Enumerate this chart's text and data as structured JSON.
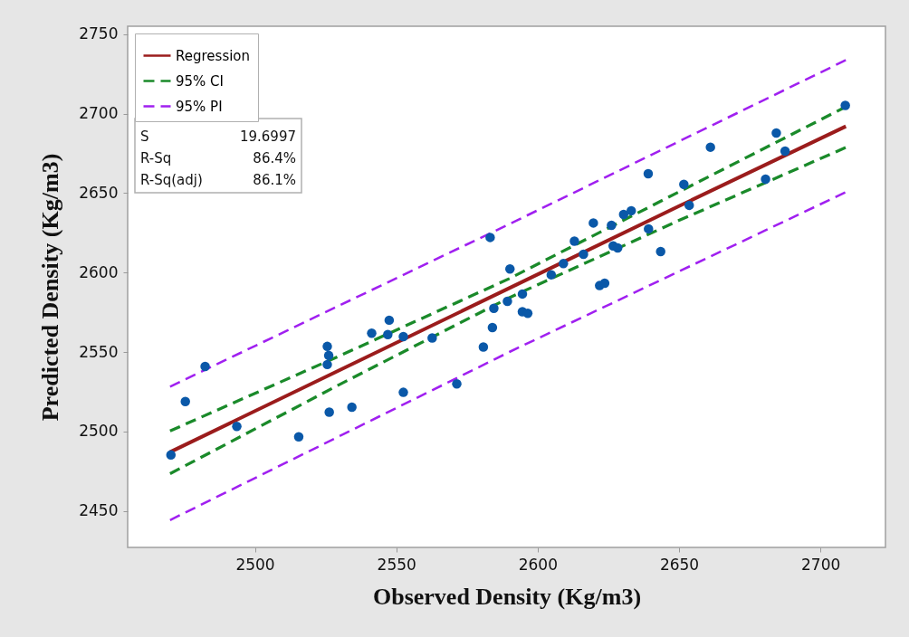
{
  "chart_data": {
    "type": "scatter",
    "xlabel": "Observed Density (Kg/m3)",
    "ylabel": "Predicted Density (Kg/m3)",
    "xlim": [
      2455,
      2723
    ],
    "ylim": [
      2427,
      2755
    ],
    "xticks": [
      2500,
      2550,
      2600,
      2650,
      2700
    ],
    "yticks": [
      2450,
      2500,
      2550,
      2600,
      2650,
      2700,
      2750
    ],
    "grid": false,
    "legend": "top left",
    "annotations": [
      "S",
      "19.6997",
      "R-Sq",
      "86.4%",
      "R-Sq(adj)",
      "86.1%"
    ],
    "series": [
      {
        "type": "line",
        "name": "Regression",
        "color": "#9b1c1c",
        "line_style": "solid",
        "x": [
          2470,
          2530,
          2590,
          2650,
          2709
        ],
        "values": [
          2487,
          2538.6,
          2590.2,
          2641.8,
          2692
        ]
      },
      {
        "type": "line",
        "name": "95% CI",
        "color": "#1a8a2a",
        "line_style": "dashed",
        "x": [
          2470,
          2530,
          2590,
          2650,
          2709
        ],
        "values": [
          2500.3,
          2547.6,
          2596.2,
          2650.8,
          2704.3
        ]
      },
      {
        "type": "line",
        "color": "#1a8a2a",
        "line_style": "dashed",
        "x": [
          2470,
          2530,
          2590,
          2650,
          2709
        ],
        "values": [
          2473.4,
          2529.6,
          2584.2,
          2632.8,
          2678.7
        ]
      },
      {
        "type": "line",
        "name": "95% PI",
        "color": "#a020f0",
        "line_style": "dashed",
        "x": [
          2470,
          2590,
          2709
        ],
        "values": [
          2528.2,
          2630.5,
          2733.7
        ]
      },
      {
        "type": "line",
        "color": "#a020f0",
        "line_style": "dashed",
        "x": [
          2470,
          2590,
          2709
        ],
        "values": [
          2444.2,
          2550,
          2650.6
        ]
      },
      {
        "marker": "circle",
        "color": "#0a58a8",
        "x": [
          2470.3,
          2475.4,
          2482.4,
          2493.6,
          2515.5,
          2525.6,
          2526.1,
          2525.6,
          2526.3,
          2534.3,
          2541.3,
          2547.5,
          2547,
          2552.5,
          2552.5,
          2562.7,
          2571.4,
          2580.8,
          2584,
          2584.5,
          2589.3,
          2583.2,
          2590.2,
          2594.6,
          2594.6,
          2596.5,
          2604.8,
          2609.1,
          2613,
          2616.2,
          2619.7,
          2626.1,
          2621.9,
          2623.7,
          2626.7,
          2628.3,
          2639.2,
          2643.5,
          2630.4,
          2633.1,
          2639.1,
          2651.7,
          2653.6,
          2661.1,
          2680.6,
          2684.4,
          2687.5,
          2708.8
        ],
        "values": [
          2485.2,
          2518.8,
          2540.9,
          2503.2,
          2496.6,
          2553.5,
          2547.8,
          2542.1,
          2512.1,
          2515.3,
          2561.8,
          2570,
          2561,
          2559.7,
          2524.6,
          2558.8,
          2529.9,
          2553.1,
          2565.4,
          2577.5,
          2581.9,
          2622.1,
          2602.2,
          2586.5,
          2575.3,
          2574.3,
          2598.6,
          2605.6,
          2619.8,
          2611.5,
          2631.2,
          2629.7,
          2591.8,
          2593.3,
          2616.8,
          2615.5,
          2627.5,
          2613.2,
          2636.6,
          2638.9,
          2662.2,
          2655.5,
          2642.3,
          2678.9,
          2658.8,
          2687.8,
          2676.4,
          2705.2
        ]
      }
    ]
  }
}
